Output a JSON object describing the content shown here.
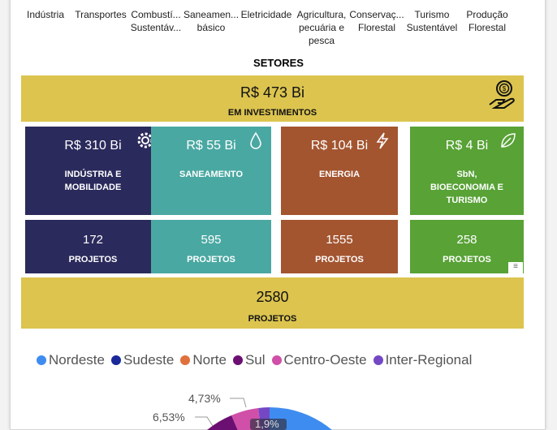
{
  "filters": [
    "Indústria",
    "Transportes",
    "Combustí... Sustentáv...",
    "Saneamen... básico",
    "Eletricidade",
    "Agricultura, pecuária e pesca",
    "Conservaç... Florestal",
    "Turismo Sustentável",
    "Produção Florestal"
  ],
  "section_title": "SETORES",
  "total": {
    "value": "R$ 473 Bi",
    "label": "EM INVESTIMENTOS"
  },
  "sectors": [
    {
      "value": "R$ 310 Bi",
      "label": "INDÚSTRIA E MOBILIDADE",
      "projects": "172",
      "color": "#2B2A5C",
      "icon": "gear-icon"
    },
    {
      "value": "R$ 55 Bi",
      "label": "SANEAMENTO",
      "projects": "595",
      "color": "#4AA8A2",
      "icon": "water-drop-icon"
    },
    {
      "value": "R$ 104 Bi",
      "label": "ENERGIA",
      "projects": "1555",
      "color": "#A35530",
      "icon": "lightning-icon"
    },
    {
      "value": "R$ 4 Bi",
      "label": "SbN, BIOECONOMIA E TURISMO",
      "projects": "258",
      "color": "#58A236",
      "icon": "leaf-icon"
    }
  ],
  "projects_label": "PROJETOS",
  "total_projects": {
    "value": "2580",
    "label": "PROJETOS"
  },
  "legend": [
    {
      "name": "Nordeste",
      "color": "#3F8CF0"
    },
    {
      "name": "Sudeste",
      "color": "#1A2899"
    },
    {
      "name": "Norte",
      "color": "#E0703C"
    },
    {
      "name": "Sul",
      "color": "#6B0F72"
    },
    {
      "name": "Centro-Oeste",
      "color": "#D04FA8"
    },
    {
      "name": "Inter-Regional",
      "color": "#7448C4"
    }
  ],
  "pie_labels": {
    "centro_oeste": "4,73%",
    "sul": "6,53%",
    "inter_regional": "1,9%"
  }
}
